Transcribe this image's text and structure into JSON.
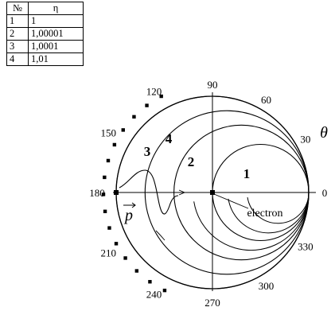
{
  "legend_table": {
    "header_no": "№",
    "header_eta": "η",
    "rows": [
      {
        "no": "1",
        "eta": "1"
      },
      {
        "no": "2",
        "eta": "1,00001"
      },
      {
        "no": "3",
        "eta": "1,0001"
      },
      {
        "no": "4",
        "eta": "1,01"
      }
    ]
  },
  "chart_data": {
    "type": "polar",
    "angle_labels": [
      "0",
      "30",
      "60",
      "90",
      "120",
      "150",
      "180",
      "210",
      "240",
      "270",
      "300",
      "330"
    ],
    "angle_symbol": "θ",
    "momentum_label": "p",
    "electron_label": "electron",
    "curves": [
      {
        "name": "1",
        "relative_size": 0.5
      },
      {
        "name": "2",
        "relative_size": 0.7
      },
      {
        "name": "3",
        "relative_size": 0.85
      },
      {
        "name": "4",
        "relative_size": 1.0
      }
    ],
    "grid": true,
    "colors": {
      "ink": "#000000",
      "background": "#ffffff"
    }
  }
}
